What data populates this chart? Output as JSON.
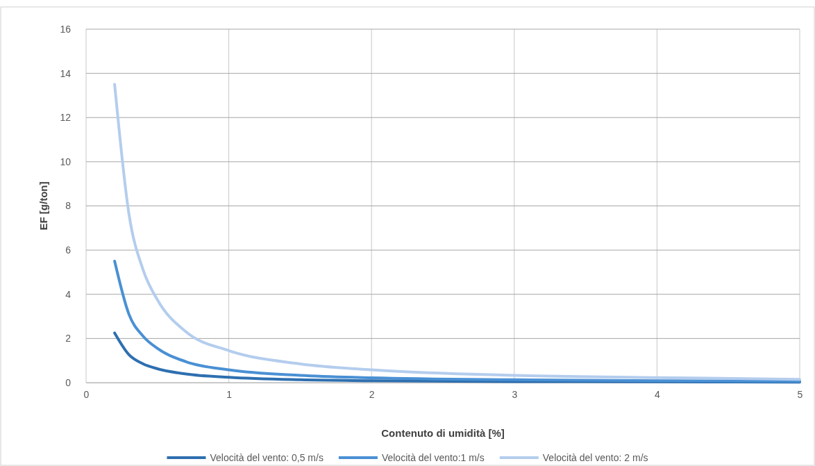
{
  "chart_data": {
    "type": "line",
    "xlabel": "Contenuto di umidità [%]",
    "ylabel": "EF [g/ton]",
    "xlim": [
      0,
      5
    ],
    "xticks": [
      0,
      1,
      2,
      3,
      4,
      5
    ],
    "ylim": [
      0,
      16
    ],
    "yticks": [
      0,
      2,
      4,
      6,
      8,
      10,
      12,
      14,
      16
    ],
    "grid": true,
    "legend": "bottom",
    "marker": "none",
    "series": [
      {
        "name": "Velocità del vento: 0,5 m/s",
        "color": "#2e6fb0",
        "x": [
          0.2,
          0.3,
          0.4,
          0.5,
          0.7,
          1,
          1.5,
          2,
          3,
          4,
          5
        ],
        "values": [
          2.25,
          1.27,
          0.85,
          0.63,
          0.39,
          0.24,
          0.13,
          0.09,
          0.05,
          0.04,
          0.02
        ]
      },
      {
        "name": "Velocità del vento:1 m/s",
        "color": "#4a90d4",
        "x": [
          0.2,
          0.3,
          0.4,
          0.5,
          0.7,
          1,
          1.5,
          2,
          3,
          4,
          5
        ],
        "values": [
          5.5,
          3.1,
          2.1,
          1.55,
          0.95,
          0.58,
          0.33,
          0.22,
          0.13,
          0.09,
          0.06
        ]
      },
      {
        "name": "Velocità del vento: 2 m/s",
        "color": "#b4cdee",
        "x": [
          0.2,
          0.3,
          0.4,
          0.5,
          0.7,
          1,
          1.5,
          2,
          3,
          4,
          5
        ],
        "values": [
          13.5,
          7.65,
          5.1,
          3.75,
          2.3,
          1.45,
          0.85,
          0.58,
          0.33,
          0.23,
          0.15
        ]
      }
    ]
  }
}
